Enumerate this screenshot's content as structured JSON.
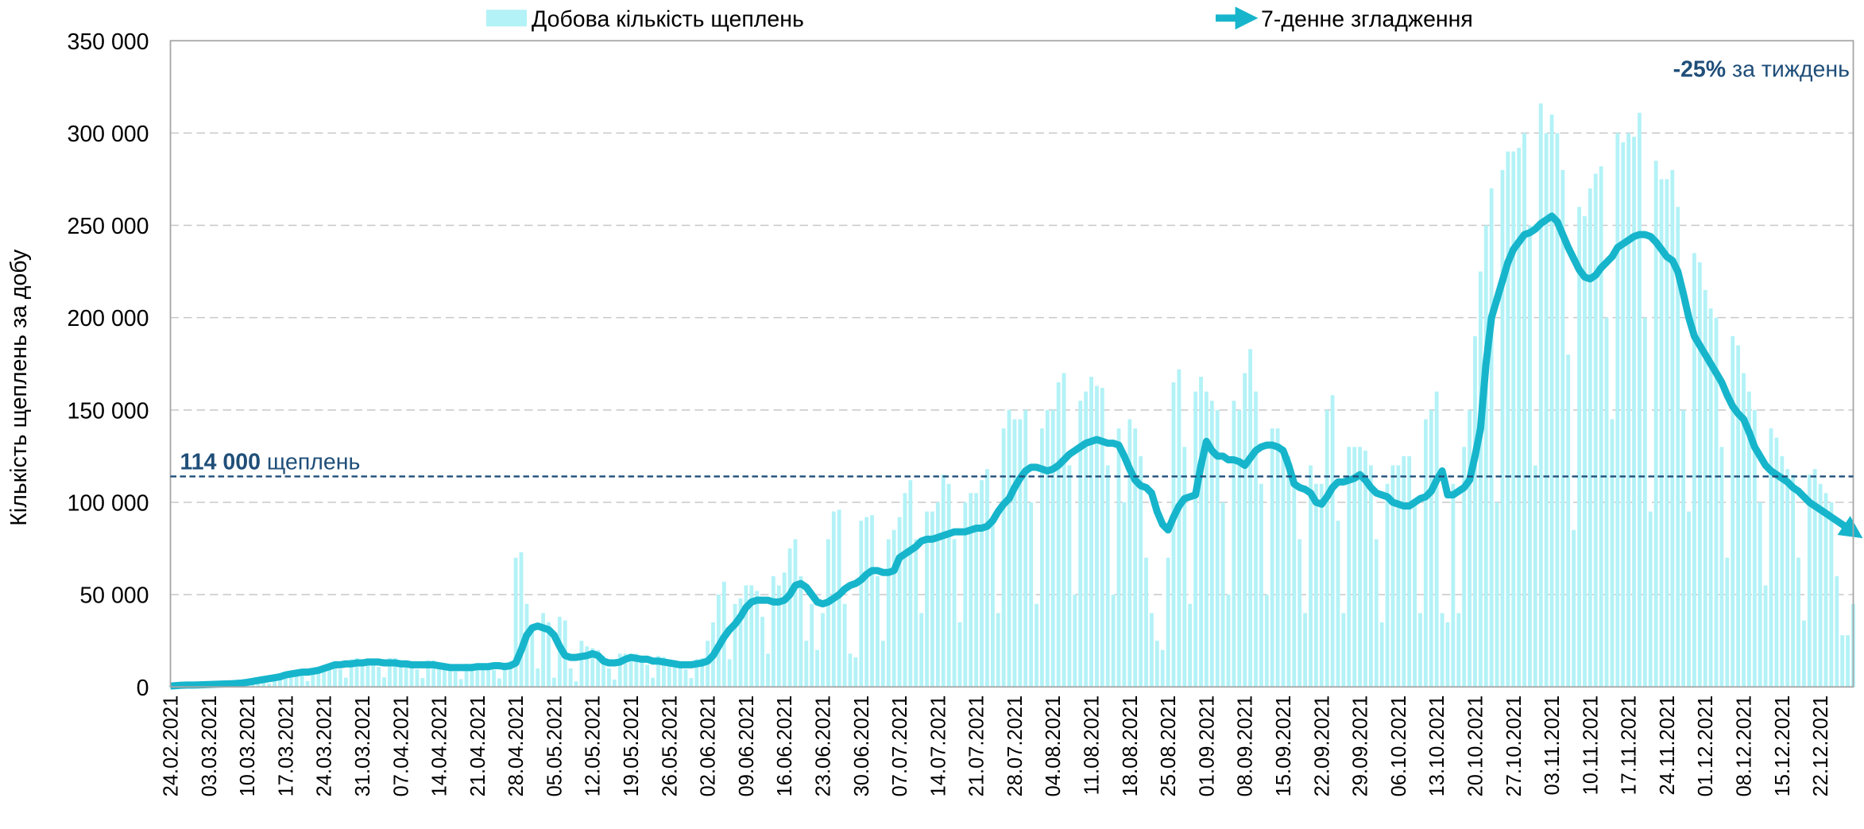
{
  "chart_data": {
    "type": "bar",
    "ylabel": "Кількість щеплень за добу",
    "ylim": [
      0,
      350000
    ],
    "yticks": [
      0,
      {
        "value": 50000,
        "label": "50 000"
      },
      {
        "value": 100000,
        "label": "100 000"
      },
      {
        "value": 150000,
        "label": "150 000"
      },
      {
        "value": 200000,
        "label": "200 000"
      },
      {
        "value": 250000,
        "label": "250 000"
      },
      {
        "value": 300000,
        "label": "300 000"
      },
      {
        "value": 350000,
        "label": "350 000"
      }
    ],
    "grid": true,
    "reference_line": {
      "value": 114000,
      "label": "114 000",
      "text": "щеплень",
      "color": "#1f4e79"
    },
    "annotation": {
      "value": -25,
      "label": "-25%",
      "text": "за тиждень",
      "color": "#1f4e79"
    },
    "categories": [
      "24.02.2021",
      null,
      null,
      null,
      null,
      null,
      null,
      "03.03.2021",
      null,
      null,
      null,
      null,
      null,
      null,
      "10.03.2021",
      null,
      null,
      null,
      null,
      null,
      null,
      "17.03.2021",
      null,
      null,
      null,
      null,
      null,
      null,
      "24.03.2021",
      null,
      null,
      null,
      null,
      null,
      null,
      "31.03.2021",
      null,
      null,
      null,
      null,
      null,
      null,
      "07.04.2021",
      null,
      null,
      null,
      null,
      null,
      null,
      "14.04.2021",
      null,
      null,
      null,
      null,
      null,
      null,
      "21.04.2021",
      null,
      null,
      null,
      null,
      null,
      null,
      "28.04.2021",
      null,
      null,
      null,
      null,
      null,
      null,
      "05.05.2021",
      null,
      null,
      null,
      null,
      null,
      null,
      "12.05.2021",
      null,
      null,
      null,
      null,
      null,
      null,
      "19.05.2021",
      null,
      null,
      null,
      null,
      null,
      null,
      "26.05.2021",
      null,
      null,
      null,
      null,
      null,
      null,
      "02.06.2021",
      null,
      null,
      null,
      null,
      null,
      null,
      "09.06.2021",
      null,
      null,
      null,
      null,
      null,
      null,
      "16.06.2021",
      null,
      null,
      null,
      null,
      null,
      null,
      "23.06.2021",
      null,
      null,
      null,
      null,
      null,
      null,
      "30.06.2021",
      null,
      null,
      null,
      null,
      null,
      null,
      "07.07.2021",
      null,
      null,
      null,
      null,
      null,
      null,
      "14.07.2021",
      null,
      null,
      null,
      null,
      null,
      null,
      "21.07.2021",
      null,
      null,
      null,
      null,
      null,
      null,
      "28.07.2021",
      null,
      null,
      null,
      null,
      null,
      null,
      "04.08.2021",
      null,
      null,
      null,
      null,
      null,
      null,
      "11.08.2021",
      null,
      null,
      null,
      null,
      null,
      null,
      "18.08.2021",
      null,
      null,
      null,
      null,
      null,
      null,
      "25.08.2021",
      null,
      null,
      null,
      null,
      null,
      null,
      "01.09.2021",
      null,
      null,
      null,
      null,
      null,
      null,
      "08.09.2021",
      null,
      null,
      null,
      null,
      null,
      null,
      "15.09.2021",
      null,
      null,
      null,
      null,
      null,
      null,
      "22.09.2021",
      null,
      null,
      null,
      null,
      null,
      null,
      "29.09.2021",
      null,
      null,
      null,
      null,
      null,
      null,
      "06.10.2021",
      null,
      null,
      null,
      null,
      null,
      null,
      "13.10.2021",
      null,
      null,
      null,
      null,
      null,
      null,
      "20.10.2021",
      null,
      null,
      null,
      null,
      null,
      null,
      "27.10.2021",
      null,
      null,
      null,
      null,
      null,
      null,
      "03.11.2021",
      null,
      null,
      null,
      null,
      null,
      null,
      "10.11.2021",
      null,
      null,
      null,
      null,
      null,
      null,
      "17.11.2021",
      null,
      null,
      null,
      null,
      null,
      null,
      "24.11.2021",
      null,
      null,
      null,
      null,
      null,
      null,
      "01.12.2021",
      null,
      null,
      null,
      null,
      null,
      null,
      "08.12.2021",
      null,
      null,
      null,
      null,
      null,
      null,
      "15.12.2021",
      null,
      null,
      null,
      null,
      null,
      null,
      "22.12.2021",
      null,
      null,
      null,
      null,
      null,
      null
    ],
    "series": [
      {
        "name": "Добова кількість щеплень",
        "type": "bar",
        "color": "#b3f2f7",
        "values": [
          600,
          800,
          1000,
          800,
          400,
          1300,
          1400,
          1500,
          1600,
          1700,
          1300,
          700,
          2300,
          2500,
          2900,
          3500,
          3900,
          3200,
          1800,
          6000,
          6600,
          7500,
          8100,
          8300,
          6400,
          3200,
          10200,
          10800,
          11500,
          12700,
          13200,
          9600,
          5000,
          15000,
          15600,
          15000,
          15500,
          14900,
          10800,
          5200,
          15600,
          15600,
          14400,
          14400,
          13200,
          9600,
          4800,
          14400,
          14400,
          13200,
          12700,
          11600,
          8400,
          4200,
          12600,
          12600,
          12700,
          12700,
          12100,
          9200,
          4600,
          13200,
          13800,
          70000,
          73000,
          45000,
          30000,
          10000,
          40000,
          35000,
          5000,
          38000,
          36000,
          10000,
          3000,
          25000,
          22000,
          21000,
          20000,
          17000,
          10000,
          4000,
          18000,
          18000,
          18000,
          18000,
          16500,
          12000,
          5000,
          16800,
          16200,
          15000,
          14400,
          13200,
          9600,
          4800,
          15000,
          15600,
          25000,
          35000,
          50000,
          57000,
          15000,
          45000,
          48000,
          55000,
          55000,
          52000,
          38000,
          18000,
          60000,
          55000,
          62000,
          75000,
          80000,
          60000,
          25000,
          45000,
          20000,
          40000,
          80000,
          95000,
          96000,
          45000,
          18000,
          16000,
          90000,
          92000,
          93000,
          60000,
          25000,
          80000,
          85000,
          92000,
          105000,
          112000,
          80000,
          40000,
          95000,
          95000,
          100000,
          115000,
          110000,
          80000,
          35000,
          100000,
          105000,
          105000,
          112000,
          118000,
          90000,
          40000,
          140000,
          150000,
          145000,
          145000,
          150000,
          100000,
          45000,
          140000,
          150000,
          150000,
          165000,
          170000,
          120000,
          50000,
          155000,
          160000,
          168000,
          163000,
          162000,
          120000,
          50000,
          140000,
          100000,
          145000,
          140000,
          125000,
          70000,
          40000,
          25000,
          20000,
          70000,
          165000,
          172000,
          130000,
          45000,
          160000,
          168000,
          160000,
          155000,
          150000,
          100000,
          50000,
          155000,
          150000,
          170000,
          183000,
          160000,
          110000,
          50000,
          140000,
          140000,
          130000,
          125000,
          115000,
          80000,
          40000,
          120000,
          110000,
          110000,
          150000,
          158000,
          90000,
          40000,
          130000,
          130000,
          130000,
          128000,
          120000,
          80000,
          35000,
          110000,
          120000,
          120000,
          125000,
          125000,
          100000,
          40000,
          145000,
          150000,
          160000,
          40000,
          35000,
          110000,
          40000,
          130000,
          150000,
          190000,
          225000,
          250000,
          270000,
          100000,
          280000,
          290000,
          290000,
          292000,
          300000,
          250000,
          120000,
          316000,
          300000,
          310000,
          300000,
          280000,
          180000,
          85000,
          260000,
          255000,
          270000,
          278000,
          282000,
          200000,
          145000,
          300000,
          295000,
          300000,
          298000,
          311000,
          200000,
          95000,
          285000,
          275000,
          275000,
          280000,
          260000,
          150000,
          95000,
          235000,
          230000,
          215000,
          205000,
          200000,
          130000,
          70000,
          190000,
          185000,
          170000,
          160000,
          150000,
          100000,
          55000,
          140000,
          135000,
          125000,
          118000,
          115000,
          70000,
          36000,
          115000,
          118000,
          110000,
          105000,
          100000,
          60000,
          28000,
          28000,
          45000
        ]
      },
      {
        "name": "7-денне згладження",
        "type": "line",
        "color": "#17b5cb",
        "values": [
          500,
          700,
          900,
          1000,
          1000,
          1100,
          1200,
          1300,
          1400,
          1500,
          1600,
          1700,
          1900,
          2100,
          2500,
          3000,
          3500,
          4000,
          4500,
          5000,
          5500,
          6500,
          7000,
          7500,
          8000,
          8000,
          8500,
          9000,
          10000,
          11000,
          12000,
          12000,
          12500,
          12500,
          13000,
          13000,
          13500,
          13500,
          13500,
          13000,
          13000,
          13000,
          12500,
          12500,
          12000,
          12000,
          12000,
          12000,
          12000,
          11500,
          11000,
          10500,
          10500,
          10500,
          10500,
          10500,
          11000,
          11000,
          11000,
          11500,
          11500,
          11000,
          11500,
          13000,
          20000,
          28000,
          32000,
          33000,
          32000,
          31000,
          28000,
          22000,
          17000,
          16000,
          16000,
          16500,
          17000,
          18000,
          17000,
          14000,
          13000,
          13000,
          13500,
          15000,
          16000,
          15500,
          15000,
          15000,
          14000,
          14000,
          13500,
          13000,
          12500,
          12000,
          12000,
          12000,
          12500,
          13000,
          14000,
          17000,
          22000,
          27000,
          31000,
          34000,
          38000,
          43000,
          46000,
          47000,
          47000,
          47000,
          46000,
          46000,
          47000,
          50000,
          55000,
          56000,
          54000,
          50000,
          46000,
          45000,
          46000,
          48000,
          50000,
          53000,
          55000,
          56000,
          58000,
          61000,
          63000,
          63000,
          62000,
          62000,
          63000,
          70000,
          72000,
          74000,
          76000,
          79000,
          80000,
          80000,
          81000,
          82000,
          83000,
          84000,
          84000,
          84000,
          85000,
          86000,
          86000,
          87000,
          90000,
          95000,
          99000,
          102000,
          108000,
          113000,
          117000,
          119000,
          119000,
          118000,
          117000,
          118000,
          120000,
          123000,
          126000,
          128000,
          130000,
          132000,
          133000,
          134000,
          133000,
          132000,
          132000,
          131000,
          125000,
          118000,
          112000,
          109000,
          108000,
          105000,
          95000,
          88000,
          85000,
          92000,
          98000,
          102000,
          103000,
          104000,
          120000,
          133000,
          128000,
          125000,
          125000,
          123000,
          123000,
          122000,
          120000,
          124000,
          128000,
          130000,
          131000,
          131000,
          130000,
          128000,
          120000,
          110000,
          108000,
          107000,
          105000,
          100000,
          99000,
          103000,
          108000,
          111000,
          111000,
          112000,
          113000,
          115000,
          112000,
          108000,
          105000,
          104000,
          103000,
          100000,
          99000,
          98000,
          98000,
          100000,
          102000,
          103000,
          106000,
          112000,
          117000,
          104000,
          104000,
          106000,
          108000,
          112000,
          125000,
          140000,
          175000,
          200000,
          210000,
          220000,
          230000,
          237000,
          241000,
          245000,
          246000,
          248000,
          251000,
          253000,
          255000,
          252000,
          245000,
          238000,
          232000,
          226000,
          222000,
          221000,
          223000,
          227000,
          230000,
          233000,
          238000,
          240000,
          242000,
          244000,
          245000,
          245000,
          244000,
          241000,
          237000,
          233000,
          231000,
          225000,
          213000,
          200000,
          190000,
          185000,
          180000,
          175000,
          170000,
          165000,
          158000,
          152000,
          148000,
          145000,
          138000,
          130000,
          125000,
          120000,
          117000,
          115000,
          113000,
          111000,
          108000,
          106000,
          103000,
          100000,
          98000,
          96000,
          94000,
          92000,
          90000,
          88000,
          86000,
          84000
        ]
      }
    ]
  }
}
